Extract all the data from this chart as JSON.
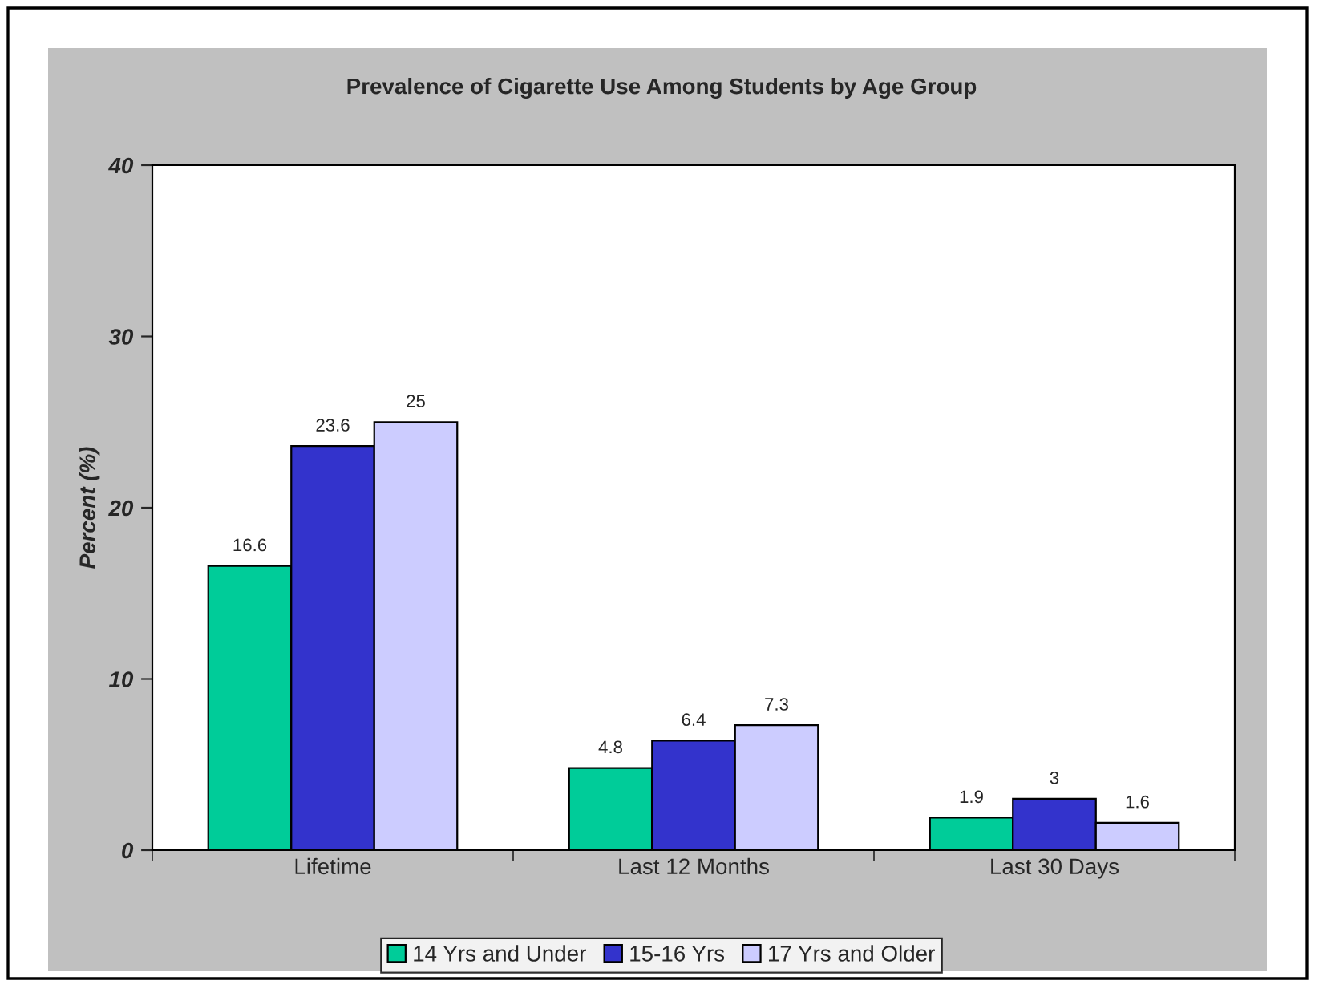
{
  "chart_data": {
    "type": "bar",
    "title": "Prevalence of Cigarette Use Among Students by Age Group",
    "ylabel": "Percent (%)",
    "categories": [
      "Lifetime",
      "Last 12 Months",
      "Last 30 Days"
    ],
    "series": [
      {
        "name": "14 Yrs and Under",
        "color": "#00cc99",
        "values": [
          16.6,
          4.8,
          1.9
        ]
      },
      {
        "name": "15-16 Yrs",
        "color": "#3333cc",
        "values": [
          23.6,
          6.4,
          3
        ]
      },
      {
        "name": "17 Yrs and Older",
        "color": "#ccccff",
        "values": [
          25,
          7.3,
          1.6
        ]
      }
    ],
    "ylim": [
      0,
      40
    ],
    "yticks": [
      0,
      10,
      20,
      30,
      40
    ],
    "grid": false,
    "legend": "bottom",
    "data_labels": true
  }
}
